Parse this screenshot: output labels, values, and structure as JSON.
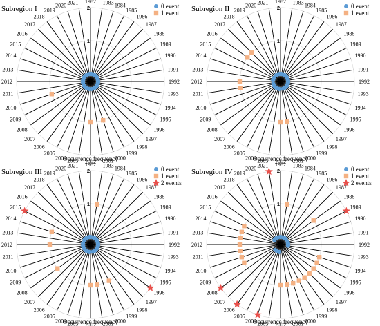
{
  "chart_data": [
    {
      "type": "radar",
      "title": "Subregion I",
      "xlabel": "Occurrence frequency",
      "rticks": [
        "0",
        "1",
        "2"
      ],
      "rlim": [
        0,
        2
      ],
      "legend": [
        {
          "label": "0 event",
          "marker": "circle",
          "color": "#5B9BD5"
        },
        {
          "label": "1 event",
          "marker": "square",
          "color": "#F4B183"
        }
      ],
      "categories": [
        1982,
        1983,
        1984,
        1985,
        1986,
        1987,
        1988,
        1989,
        1990,
        1991,
        1992,
        1993,
        1994,
        1995,
        1996,
        1997,
        1998,
        1999,
        2000,
        2001,
        2002,
        2003,
        2004,
        2005,
        2006,
        2007,
        2008,
        2009,
        2010,
        2011,
        2012,
        2013,
        2014,
        2015,
        2016,
        2017,
        2018,
        2019,
        2020,
        2021
      ],
      "values": [
        0,
        0,
        0,
        0,
        0,
        0,
        0,
        0,
        0,
        0,
        0,
        0,
        0,
        0,
        0,
        0,
        0,
        0,
        1,
        0,
        1,
        0,
        0,
        0,
        0,
        0,
        0,
        0,
        1,
        0,
        0,
        0,
        0,
        0,
        0,
        0,
        0,
        0,
        0,
        0
      ]
    },
    {
      "type": "radar",
      "title": "Subregion II",
      "xlabel": "Occurrence frequency",
      "rticks": [
        "0",
        "1",
        "2"
      ],
      "rlim": [
        0,
        2
      ],
      "legend": [
        {
          "label": "0 event",
          "marker": "circle",
          "color": "#5B9BD5"
        },
        {
          "label": "1 event",
          "marker": "square",
          "color": "#F4B183"
        }
      ],
      "categories": [
        1982,
        1983,
        1984,
        1985,
        1986,
        1987,
        1988,
        1989,
        1990,
        1991,
        1992,
        1993,
        1994,
        1995,
        1996,
        1997,
        1998,
        1999,
        2000,
        2001,
        2002,
        2003,
        2004,
        2005,
        2006,
        2007,
        2008,
        2009,
        2010,
        2011,
        2012,
        2013,
        2014,
        2015,
        2016,
        2017,
        2018,
        2019,
        2020,
        2021
      ],
      "values": [
        0,
        0,
        0,
        0,
        0,
        0,
        0,
        0,
        0,
        0,
        0,
        0,
        0,
        0,
        0,
        0,
        0,
        0,
        0,
        1,
        1,
        0,
        0,
        0,
        0,
        0,
        0,
        0,
        0,
        1,
        1,
        0,
        0,
        0,
        1,
        1,
        0,
        0,
        0,
        0
      ]
    },
    {
      "type": "radar",
      "title": "Subregion III",
      "xlabel": "Occurrence frequency",
      "rticks": [
        "0",
        "1",
        "2"
      ],
      "rlim": [
        0,
        2
      ],
      "legend": [
        {
          "label": "0 event",
          "marker": "circle",
          "color": "#5B9BD5"
        },
        {
          "label": "1 event",
          "marker": "square",
          "color": "#F4B183"
        },
        {
          "label": "2 events",
          "marker": "star",
          "color": "#E8504B"
        }
      ],
      "categories": [
        1982,
        1983,
        1984,
        1985,
        1986,
        1987,
        1988,
        1989,
        1990,
        1991,
        1992,
        1993,
        1994,
        1995,
        1996,
        1997,
        1998,
        1999,
        2000,
        2001,
        2002,
        2003,
        2004,
        2005,
        2006,
        2007,
        2008,
        2009,
        2010,
        2011,
        2012,
        2013,
        2014,
        2015,
        2016,
        2017,
        2018,
        2019,
        2020,
        2021
      ],
      "values": [
        0,
        1,
        0,
        0,
        0,
        0,
        0,
        0,
        0,
        0,
        0,
        0,
        0,
        0,
        2,
        0,
        0,
        1,
        0,
        1,
        1,
        0,
        0,
        0,
        0,
        0,
        1,
        0,
        0,
        0,
        1,
        0,
        1,
        2,
        0,
        0,
        0,
        0,
        0,
        0
      ]
    },
    {
      "type": "radar",
      "title": "Subregion IV",
      "xlabel": "Occurrence frequency",
      "rticks": [
        "0",
        "1",
        "2"
      ],
      "rlim": [
        0,
        2
      ],
      "legend": [
        {
          "label": "0 event",
          "marker": "circle",
          "color": "#5B9BD5"
        },
        {
          "label": "1 event",
          "marker": "square",
          "color": "#F4B183"
        },
        {
          "label": "2 events",
          "marker": "star",
          "color": "#E8504B"
        }
      ],
      "categories": [
        1982,
        1983,
        1984,
        1985,
        1986,
        1987,
        1988,
        1989,
        1990,
        1991,
        1992,
        1993,
        1994,
        1995,
        1996,
        1997,
        1998,
        1999,
        2000,
        2001,
        2002,
        2003,
        2004,
        2005,
        2006,
        2007,
        2008,
        2009,
        2010,
        2011,
        2012,
        2013,
        2014,
        2015,
        2016,
        2017,
        2018,
        2019,
        2020,
        2021
      ],
      "values": [
        0,
        1,
        0,
        0,
        0,
        0,
        1,
        2,
        0,
        0,
        0,
        0,
        1,
        1,
        1,
        1,
        1,
        1,
        1,
        1,
        1,
        0,
        2,
        0,
        2,
        0,
        2,
        1,
        1,
        1,
        1,
        1,
        1,
        1,
        0,
        0,
        0,
        0,
        0,
        2
      ]
    }
  ]
}
